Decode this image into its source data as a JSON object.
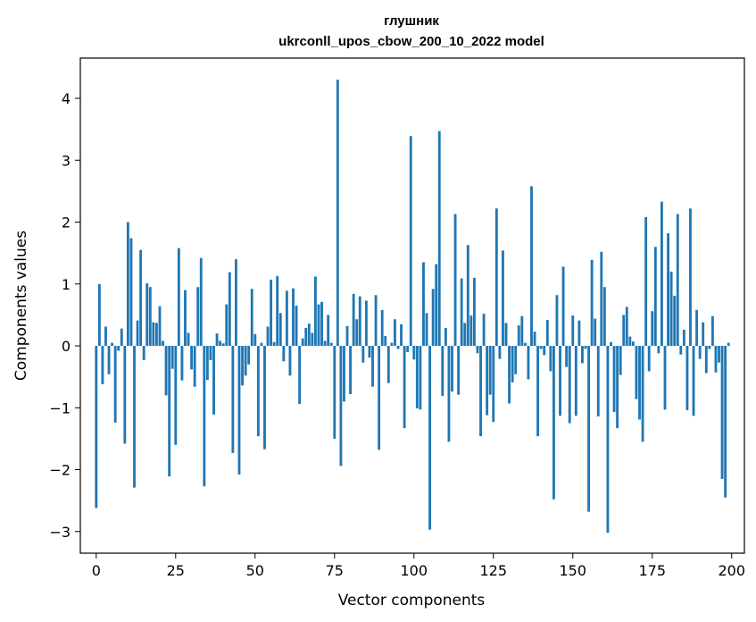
{
  "chart_data": {
    "type": "bar",
    "title": "глушник",
    "subtitle": "ukrconll_upos_cbow_200_10_2022 model",
    "xlabel": "Vector components",
    "ylabel": "Components values",
    "xlim": [
      -5,
      204
    ],
    "ylim": [
      -3.35,
      4.65
    ],
    "xticks": [
      0,
      25,
      50,
      75,
      100,
      125,
      150,
      175,
      200
    ],
    "yticks": [
      -3,
      -2,
      -1,
      0,
      1,
      2,
      3,
      4
    ],
    "xtick_labels": [
      "0",
      "25",
      "50",
      "75",
      "100",
      "125",
      "150",
      "175",
      "200"
    ],
    "ytick_labels": [
      "−3",
      "−2",
      "−1",
      "0",
      "1",
      "2",
      "3",
      "4"
    ],
    "bar_color": "#1f77b4",
    "grid": false,
    "values": [
      -2.62,
      1.0,
      -0.62,
      0.31,
      -0.46,
      0.05,
      -1.24,
      -0.08,
      0.28,
      -1.58,
      2.0,
      1.74,
      -2.29,
      0.41,
      1.55,
      -0.23,
      1.01,
      0.95,
      0.38,
      0.37,
      0.64,
      0.08,
      -0.8,
      -2.11,
      -0.37,
      -1.6,
      1.58,
      -0.56,
      0.9,
      0.21,
      -0.38,
      -0.66,
      0.95,
      1.42,
      -2.27,
      -0.55,
      -0.23,
      -1.11,
      0.2,
      0.08,
      0.04,
      0.67,
      1.19,
      -1.73,
      1.4,
      -2.08,
      -0.64,
      -0.48,
      -0.3,
      0.92,
      0.19,
      -1.46,
      0.05,
      -1.67,
      0.31,
      1.07,
      0.06,
      1.13,
      0.53,
      -0.25,
      0.89,
      -0.48,
      0.93,
      0.65,
      -0.94,
      0.12,
      0.29,
      0.36,
      0.21,
      1.12,
      0.67,
      0.71,
      0.08,
      0.5,
      0.05,
      -1.5,
      4.3,
      -1.94,
      -0.9,
      0.32,
      -0.78,
      0.84,
      0.43,
      0.8,
      -0.27,
      0.73,
      -0.19,
      -0.66,
      0.82,
      -1.68,
      0.58,
      0.16,
      -0.6,
      0.05,
      0.43,
      -0.05,
      0.35,
      -1.33,
      -0.1,
      3.39,
      -0.22,
      -1.01,
      -1.03,
      1.35,
      0.53,
      -2.97,
      0.92,
      1.32,
      3.47,
      -0.81,
      0.29,
      -1.55,
      -0.74,
      2.13,
      -0.79,
      1.09,
      0.37,
      1.63,
      0.49,
      1.1,
      -0.12,
      -1.46,
      0.52,
      -1.12,
      -0.79,
      -1.23,
      2.22,
      -0.21,
      1.54,
      0.37,
      -0.93,
      -0.59,
      -0.46,
      0.33,
      0.48,
      0.05,
      -0.54,
      2.58,
      0.23,
      -1.46,
      -0.05,
      -0.15,
      0.42,
      -0.41,
      -2.48,
      0.82,
      -1.13,
      1.28,
      -0.34,
      -1.25,
      0.49,
      -1.13,
      0.41,
      -0.28,
      -0.05,
      -2.68,
      1.39,
      0.44,
      -1.14,
      1.52,
      0.95,
      -3.02,
      0.06,
      -1.07,
      -1.33,
      -0.47,
      0.5,
      0.63,
      0.15,
      0.07,
      -0.86,
      -1.19,
      -1.55,
      2.08,
      -0.41,
      0.56,
      1.6,
      -0.12,
      2.33,
      -1.03,
      1.82,
      1.2,
      0.81,
      2.13,
      -0.14,
      0.26,
      -1.04,
      2.22,
      -1.13,
      0.58,
      -0.21,
      0.38,
      -0.44,
      -0.05,
      0.48,
      -0.43,
      -0.27,
      -2.15,
      -2.45,
      0.05
    ]
  }
}
